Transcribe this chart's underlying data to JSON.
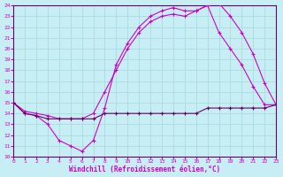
{
  "xlabel": "Windchill (Refroidissement éolien,°C)",
  "background_color": "#c8eef5",
  "grid_color": "#aadddd",
  "line_color_bright": "#cc00cc",
  "line_color_dark": "#660066",
  "xlim": [
    0,
    23
  ],
  "ylim": [
    10,
    24
  ],
  "xticks": [
    0,
    1,
    2,
    3,
    4,
    5,
    6,
    7,
    8,
    9,
    10,
    11,
    12,
    13,
    14,
    15,
    16,
    17,
    18,
    19,
    20,
    21,
    22,
    23
  ],
  "yticks": [
    10,
    11,
    12,
    13,
    14,
    15,
    16,
    17,
    18,
    19,
    20,
    21,
    22,
    23,
    24
  ],
  "line1_x": [
    0,
    1,
    2,
    3,
    4,
    5,
    6,
    7,
    8,
    9,
    10,
    11,
    12,
    13,
    14,
    15,
    16,
    17,
    18,
    19,
    20,
    21,
    22,
    23
  ],
  "line1_y": [
    15.0,
    14.0,
    13.8,
    13.0,
    11.5,
    11.0,
    10.5,
    11.5,
    14.5,
    18.5,
    20.5,
    22.0,
    23.0,
    23.5,
    23.8,
    23.5,
    23.5,
    24.0,
    24.2,
    23.0,
    21.5,
    19.5,
    16.8,
    14.8
  ],
  "line2_x": [
    0,
    1,
    2,
    3,
    4,
    5,
    6,
    7,
    8,
    9,
    10,
    11,
    12,
    13,
    14,
    15,
    16,
    17,
    18,
    19,
    20,
    21,
    22,
    23
  ],
  "line2_y": [
    15.0,
    14.2,
    14.0,
    13.8,
    13.5,
    13.5,
    13.5,
    14.0,
    16.0,
    18.0,
    20.0,
    21.5,
    22.5,
    23.0,
    23.2,
    23.0,
    23.5,
    24.0,
    21.5,
    20.0,
    18.5,
    16.5,
    14.8,
    14.8
  ],
  "line3_x": [
    0,
    1,
    2,
    3,
    4,
    5,
    6,
    7,
    8,
    9,
    10,
    11,
    12,
    13,
    14,
    15,
    16,
    17,
    18,
    19,
    20,
    21,
    22,
    23
  ],
  "line3_y": [
    15.0,
    14.0,
    13.8,
    13.5,
    13.5,
    13.5,
    13.5,
    13.5,
    14.0,
    14.0,
    14.0,
    14.0,
    14.0,
    14.0,
    14.0,
    14.0,
    14.0,
    14.5,
    14.5,
    14.5,
    14.5,
    14.5,
    14.5,
    14.8
  ]
}
